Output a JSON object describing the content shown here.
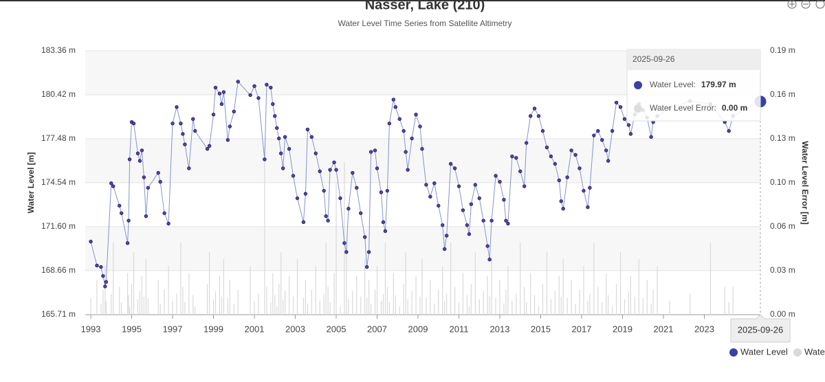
{
  "chart_data": {
    "type": "line",
    "title": "Nasser, Lake (210)",
    "subtitle": "Water Level Time Series from Satellite Altimetry",
    "y_label": "Water Level [m]",
    "y2_label": "Water Level Error [m]",
    "x": [
      1993.0,
      1993.3,
      1993.5,
      1993.6,
      1993.7,
      1993.75,
      1994.0,
      1994.1,
      1994.4,
      1994.5,
      1994.8,
      1994.85,
      1994.9,
      1995.0,
      1995.1,
      1995.3,
      1995.4,
      1995.5,
      1995.6,
      1995.7,
      1995.8,
      1996.3,
      1996.4,
      1996.6,
      1996.8,
      1997.0,
      1997.2,
      1997.4,
      1997.5,
      1997.6,
      1997.8,
      1998.0,
      1998.1,
      1998.7,
      1998.8,
      1999.0,
      1999.1,
      1999.3,
      1999.4,
      1999.5,
      1999.7,
      1999.8,
      2000.0,
      2000.2,
      2000.8,
      2001.0,
      2001.2,
      2001.5,
      2001.6,
      2001.8,
      2001.9,
      2002.0,
      2002.1,
      2002.2,
      2002.3,
      2002.4,
      2002.5,
      2002.7,
      2002.9,
      2003.1,
      2003.4,
      2003.5,
      2003.6,
      2003.8,
      2004.0,
      2004.2,
      2004.4,
      2004.5,
      2004.6,
      2004.7,
      2004.9,
      2005.0,
      2005.2,
      2005.4,
      2005.5,
      2005.6,
      2005.8,
      2006.0,
      2006.2,
      2006.4,
      2006.5,
      2006.6,
      2006.7,
      2006.9,
      2007.0,
      2007.2,
      2007.3,
      2007.4,
      2007.5,
      2007.6,
      2007.8,
      2007.9,
      2008.1,
      2008.3,
      2008.4,
      2008.5,
      2008.7,
      2008.9,
      2009.1,
      2009.2,
      2009.4,
      2009.6,
      2009.8,
      2010.0,
      2010.2,
      2010.3,
      2010.4,
      2010.6,
      2010.8,
      2011.0,
      2011.2,
      2011.4,
      2011.5,
      2011.6,
      2011.8,
      2012.0,
      2012.2,
      2012.4,
      2012.5,
      2012.6,
      2012.8,
      2013.0,
      2013.2,
      2013.3,
      2013.4,
      2013.6,
      2013.8,
      2014.0,
      2014.2,
      2014.3,
      2014.5,
      2014.7,
      2014.9,
      2015.1,
      2015.3,
      2015.5,
      2015.7,
      2015.9,
      2016.0,
      2016.1,
      2016.3,
      2016.5,
      2016.7,
      2016.9,
      2017.1,
      2017.3,
      2017.4,
      2017.6,
      2017.8,
      2018.0,
      2018.2,
      2018.3,
      2018.5,
      2018.7,
      2018.9,
      2019.1,
      2019.3,
      2019.4,
      2019.6,
      2019.8,
      2020.0,
      2020.2,
      2020.4,
      2020.5,
      2020.7,
      2021.3,
      2022.3,
      2023.3,
      2024.0,
      2024.2,
      2024.4,
      2025.74
    ],
    "series": [
      {
        "name": "Water Level",
        "color": "#3b3fa8",
        "line_color": "#8193cf",
        "values": [
          170.6,
          169.0,
          168.9,
          168.3,
          167.6,
          167.9,
          174.5,
          174.3,
          173.0,
          172.5,
          170.5,
          172.0,
          176.1,
          178.6,
          178.5,
          176.5,
          176.0,
          176.7,
          174.9,
          172.3,
          174.2,
          175.2,
          174.6,
          172.5,
          171.8,
          178.5,
          179.6,
          178.5,
          177.8,
          177.1,
          175.5,
          178.8,
          178.0,
          176.8,
          177.0,
          179.1,
          180.9,
          180.5,
          179.8,
          180.6,
          177.4,
          178.3,
          179.3,
          181.3,
          180.4,
          181.0,
          180.2,
          176.1,
          181.1,
          180.9,
          179.8,
          179.0,
          178.2,
          177.5,
          176.5,
          175.5,
          177.6,
          176.8,
          175.0,
          173.5,
          171.9,
          173.8,
          178.1,
          177.6,
          176.5,
          175.3,
          174.0,
          172.3,
          172.0,
          175.4,
          175.9,
          175.4,
          173.5,
          170.5,
          169.9,
          172.8,
          175.2,
          174.2,
          172.5,
          170.9,
          168.9,
          169.9,
          176.6,
          176.7,
          175.5,
          173.9,
          171.9,
          171.3,
          174.0,
          178.5,
          180.1,
          179.6,
          178.8,
          178.0,
          176.6,
          175.4,
          177.5,
          179.1,
          178.3,
          176.8,
          174.4,
          173.6,
          174.5,
          173.0,
          171.7,
          170.1,
          171.0,
          175.8,
          175.5,
          174.3,
          172.7,
          171.7,
          171.1,
          173.1,
          174.4,
          173.5,
          172.0,
          170.3,
          169.4,
          172.0,
          175.0,
          174.6,
          173.4,
          172.0,
          171.8,
          176.3,
          176.2,
          175.3,
          174.3,
          177.2,
          179.0,
          179.5,
          179.0,
          178.0,
          176.9,
          176.3,
          175.8,
          174.7,
          173.3,
          172.8,
          174.9,
          176.7,
          176.4,
          175.5,
          174.0,
          172.9,
          174.2,
          177.7,
          178.0,
          177.4,
          176.7,
          176.0,
          178.0,
          179.9,
          179.6,
          178.8,
          178.4,
          177.8,
          179.1,
          179.8,
          179.4,
          178.9,
          177.6,
          178.6,
          179.0,
          179.5,
          180.0,
          179.8,
          178.6,
          178.0,
          179.0,
          179.97
        ]
      },
      {
        "name": "Water Level Error",
        "color": "#d9d9d9",
        "axis": "y2",
        "values": [
          0.012,
          0.025,
          0.008,
          0.018,
          0.035,
          0.01,
          0.015,
          0.052,
          0.02,
          0.009,
          0.03,
          0.014,
          0.006,
          0.022,
          0.045,
          0.011,
          0.017,
          0.028,
          0.013,
          0.04,
          0.012,
          0.025,
          0.008,
          0.018,
          0.035,
          0.01,
          0.015,
          0.052,
          0.02,
          0.009,
          0.03,
          0.014,
          0.006,
          0.022,
          0.045,
          0.011,
          0.017,
          0.028,
          0.013,
          0.04,
          0.012,
          0.025,
          0.008,
          0.018,
          0.035,
          0.01,
          0.015,
          0.12,
          0.02,
          0.009,
          0.03,
          0.014,
          0.006,
          0.022,
          0.045,
          0.011,
          0.017,
          0.028,
          0.013,
          0.04,
          0.012,
          0.025,
          0.008,
          0.018,
          0.035,
          0.01,
          0.015,
          0.052,
          0.02,
          0.009,
          0.03,
          0.095,
          0.006,
          0.11,
          0.045,
          0.011,
          0.017,
          0.028,
          0.013,
          0.04,
          0.012,
          0.025,
          0.008,
          0.018,
          0.035,
          0.01,
          0.015,
          0.052,
          0.02,
          0.009,
          0.03,
          0.014,
          0.006,
          0.022,
          0.045,
          0.011,
          0.017,
          0.028,
          0.013,
          0.04,
          0.012,
          0.025,
          0.008,
          0.018,
          0.035,
          0.01,
          0.015,
          0.052,
          0.02,
          0.009,
          0.03,
          0.014,
          0.006,
          0.022,
          0.045,
          0.011,
          0.017,
          0.028,
          0.013,
          0.04,
          0.012,
          0.025,
          0.008,
          0.018,
          0.035,
          0.01,
          0.015,
          0.052,
          0.02,
          0.009,
          0.03,
          0.014,
          0.006,
          0.022,
          0.045,
          0.011,
          0.017,
          0.028,
          0.013,
          0.04,
          0.012,
          0.025,
          0.008,
          0.018,
          0.035,
          0.01,
          0.015,
          0.052,
          0.02,
          0.009,
          0.03,
          0.014,
          0.006,
          0.022,
          0.045,
          0.011,
          0.017,
          0.028,
          0.013,
          0.04,
          0.012,
          0.025,
          0.008,
          0.018,
          0.035,
          0.01,
          0.015,
          0.052,
          0.02,
          0.009,
          0.02,
          0.0
        ]
      }
    ],
    "xlim": [
      1992.73,
      2025.74
    ],
    "xticks": [
      1993,
      1995,
      1997,
      1999,
      2001,
      2003,
      2005,
      2007,
      2009,
      2011,
      2013,
      2015,
      2017,
      2019,
      2021,
      2023
    ],
    "ylim": [
      165.71,
      183.36
    ],
    "yticks": [
      {
        "value": 165.71,
        "label": "165.71 m"
      },
      {
        "value": 168.66,
        "label": "168.66 m"
      },
      {
        "value": 171.6,
        "label": "171.60 m"
      },
      {
        "value": 174.54,
        "label": "174.54 m"
      },
      {
        "value": 177.48,
        "label": "177.48 m"
      },
      {
        "value": 180.42,
        "label": "180.42 m"
      },
      {
        "value": 183.36,
        "label": "183.36 m"
      }
    ],
    "y2lim": [
      0,
      0.19
    ],
    "y2ticks": [
      {
        "value": 0,
        "label": "0.00 m"
      },
      {
        "value": 0.03167,
        "label": "0.03 m"
      },
      {
        "value": 0.06333,
        "label": "0.06 m"
      },
      {
        "value": 0.095,
        "label": "0.10 m"
      },
      {
        "value": 0.12667,
        "label": "0.13 m"
      },
      {
        "value": 0.15833,
        "label": "0.16 m"
      },
      {
        "value": 0.19,
        "label": "0.19 m"
      }
    ],
    "grid": true,
    "legend": "bottom-right",
    "tooltip": {
      "date": "2025-09-26",
      "rows": [
        {
          "label": "Water Level:",
          "value": "179.97 m"
        },
        {
          "label": "Water Level Error:",
          "value": "0.00 m"
        }
      ]
    },
    "crosshair_label": "2025-09-26"
  }
}
